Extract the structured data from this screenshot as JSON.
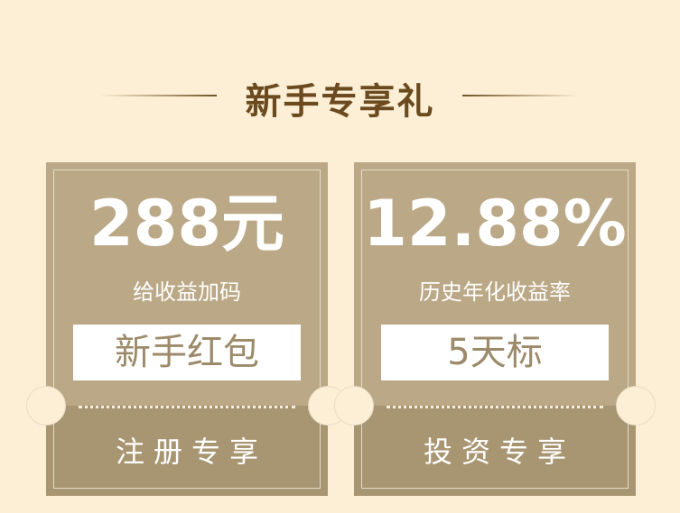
{
  "section_title": "新手专享礼",
  "cards": [
    {
      "amount": "288元",
      "description": "给收益加码",
      "label": "新手红包",
      "footer": "注册专享"
    },
    {
      "amount": "12.88%",
      "description": "历史年化收益率",
      "label": "5天标",
      "footer": "投资专享"
    }
  ],
  "colors": {
    "background": "#fdefd6",
    "card": "#baa886",
    "card_footer": "#a89571",
    "title": "#6a4a1e"
  }
}
